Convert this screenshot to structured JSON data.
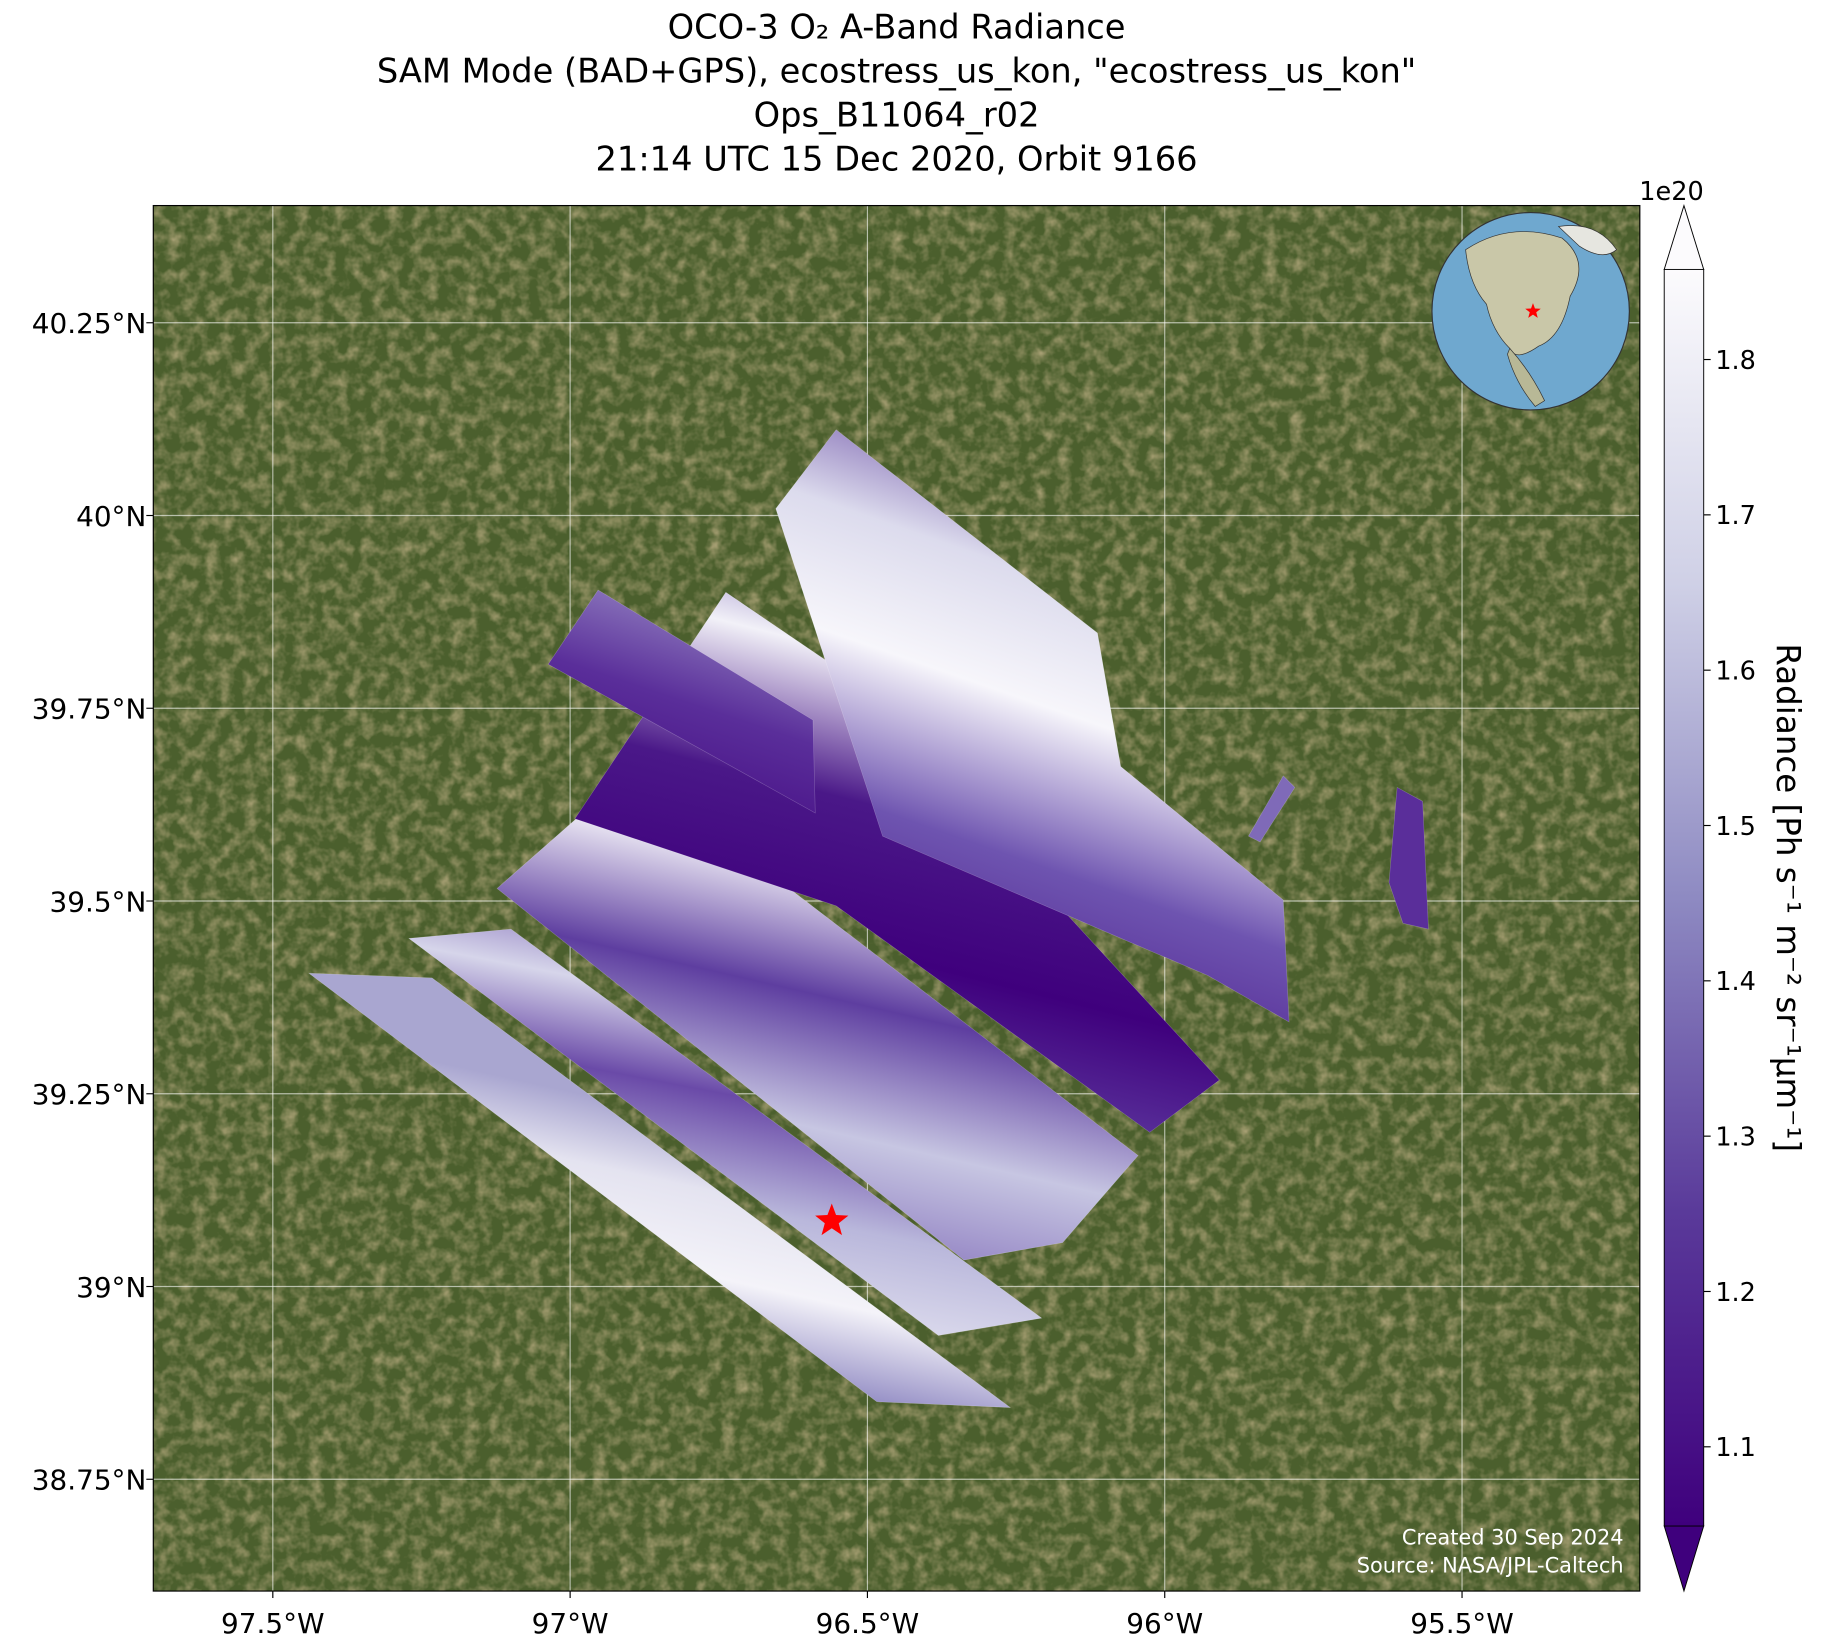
{
  "chart_data": {
    "type": "map",
    "title": [
      "OCO-3 O₂ A-Band Radiance",
      "SAM Mode (BAD+GPS), ecostress_us_kon, \"ecostress_us_kon\"",
      "Ops_B11064_r02",
      "21:14 UTC 15 Dec 2020, Orbit 9166"
    ],
    "xlim": [
      -97.701,
      -95.201
    ],
    "ylim": [
      38.605,
      40.402
    ],
    "xticks": [
      {
        "value": -97.5,
        "label": "97.5°W"
      },
      {
        "value": -97,
        "label": "97°W"
      },
      {
        "value": -96.5,
        "label": "96.5°W"
      },
      {
        "value": -96,
        "label": "96°W"
      },
      {
        "value": -95.5,
        "label": "95.5°W"
      }
    ],
    "yticks": [
      {
        "value": 38.75,
        "label": "38.75°N"
      },
      {
        "value": 39,
        "label": "39°N"
      },
      {
        "value": 39.25,
        "label": "39.25°N"
      },
      {
        "value": 39.5,
        "label": "39.5°N"
      },
      {
        "value": 39.75,
        "label": "39.75°N"
      },
      {
        "value": 40,
        "label": "40°N"
      },
      {
        "value": 40.25,
        "label": "40.25°N"
      }
    ],
    "grid": true,
    "target": {
      "lon": -96.56,
      "lat": 39.085,
      "color": "#ff0000"
    },
    "colorbar": {
      "label": "Radiance [Ph s⁻¹ m⁻² sr⁻¹μm⁻¹]",
      "offset_label": "1e20",
      "lim": [
        1.049,
        1.858
      ],
      "ticks": [
        1.1,
        1.2,
        1.3,
        1.4,
        1.5,
        1.6,
        1.7,
        1.8
      ],
      "colors": [
        "#3f007d",
        "#fcfbfd"
      ]
    },
    "annotations": [
      "Created 30 Sep 2024",
      "Source: NASA/JPL-Caltech"
    ]
  }
}
